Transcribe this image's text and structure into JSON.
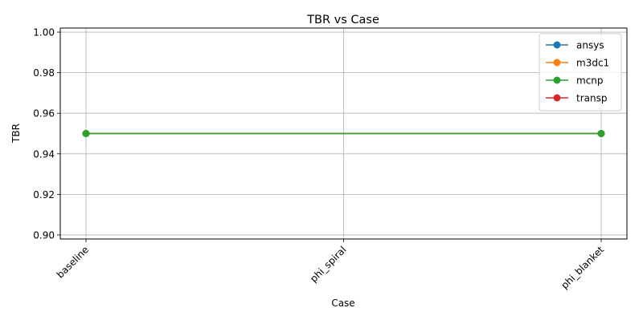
{
  "chart_data": {
    "type": "line",
    "title": "TBR vs Case",
    "xlabel": "Case",
    "ylabel": "TBR",
    "categories": [
      "baseline",
      "phi_spiral",
      "phi_blanket"
    ],
    "ylim": [
      0.898,
      1.002
    ],
    "yticks": [
      0.9,
      0.92,
      0.94,
      0.96,
      0.98,
      1.0
    ],
    "ytick_labels": [
      "0.90",
      "0.92",
      "0.94",
      "0.96",
      "0.98",
      "1.00"
    ],
    "grid": true,
    "legend_position": "top-right",
    "series": [
      {
        "name": "ansys",
        "color": "#1f77b4",
        "points": [
          {
            "x": "baseline",
            "y": 0.95
          },
          {
            "x": "phi_blanket",
            "y": 0.95
          }
        ]
      },
      {
        "name": "m3dc1",
        "color": "#ff7f0e",
        "points": [
          {
            "x": "baseline",
            "y": 0.95
          },
          {
            "x": "phi_blanket",
            "y": 0.95
          }
        ]
      },
      {
        "name": "mcnp",
        "color": "#2ca02c",
        "points": [
          {
            "x": "baseline",
            "y": 0.95
          },
          {
            "x": "phi_blanket",
            "y": 0.95
          }
        ]
      },
      {
        "name": "transp",
        "color": "#d62728",
        "points": []
      }
    ]
  }
}
